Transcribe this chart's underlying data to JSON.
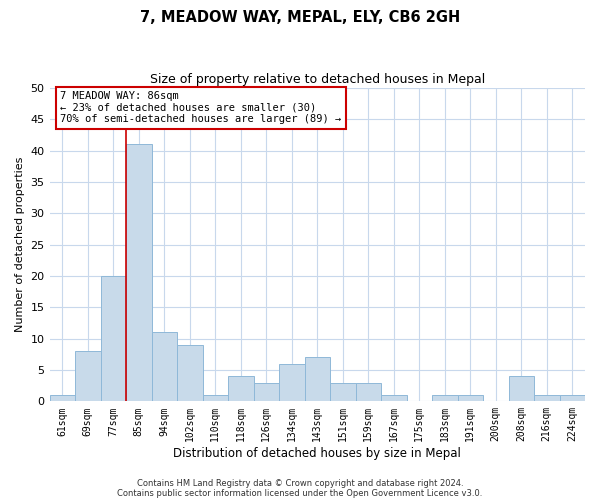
{
  "title": "7, MEADOW WAY, MEPAL, ELY, CB6 2GH",
  "subtitle": "Size of property relative to detached houses in Mepal",
  "xlabel": "Distribution of detached houses by size in Mepal",
  "ylabel": "Number of detached properties",
  "footer_line1": "Contains HM Land Registry data © Crown copyright and database right 2024.",
  "footer_line2": "Contains public sector information licensed under the Open Government Licence v3.0.",
  "bin_labels": [
    "61sqm",
    "69sqm",
    "77sqm",
    "85sqm",
    "94sqm",
    "102sqm",
    "110sqm",
    "118sqm",
    "126sqm",
    "134sqm",
    "143sqm",
    "151sqm",
    "159sqm",
    "167sqm",
    "175sqm",
    "183sqm",
    "191sqm",
    "200sqm",
    "208sqm",
    "216sqm",
    "224sqm"
  ],
  "bar_heights": [
    1,
    8,
    20,
    41,
    11,
    9,
    1,
    4,
    3,
    6,
    7,
    3,
    3,
    1,
    0,
    1,
    1,
    0,
    4,
    1,
    1
  ],
  "bar_color": "#c8daea",
  "bar_edge_color": "#8fb8d8",
  "vline_x_index": 3,
  "vline_color": "#cc0000",
  "annotation_title": "7 MEADOW WAY: 86sqm",
  "annotation_line1": "← 23% of detached houses are smaller (30)",
  "annotation_line2": "70% of semi-detached houses are larger (89) →",
  "annotation_box_color": "#ffffff",
  "annotation_box_edge": "#cc0000",
  "ylim": [
    0,
    50
  ],
  "yticks": [
    0,
    5,
    10,
    15,
    20,
    25,
    30,
    35,
    40,
    45,
    50
  ],
  "grid_color": "#c8d8ec",
  "background_color": "#ffffff",
  "figwidth": 6.0,
  "figheight": 5.0,
  "dpi": 100
}
